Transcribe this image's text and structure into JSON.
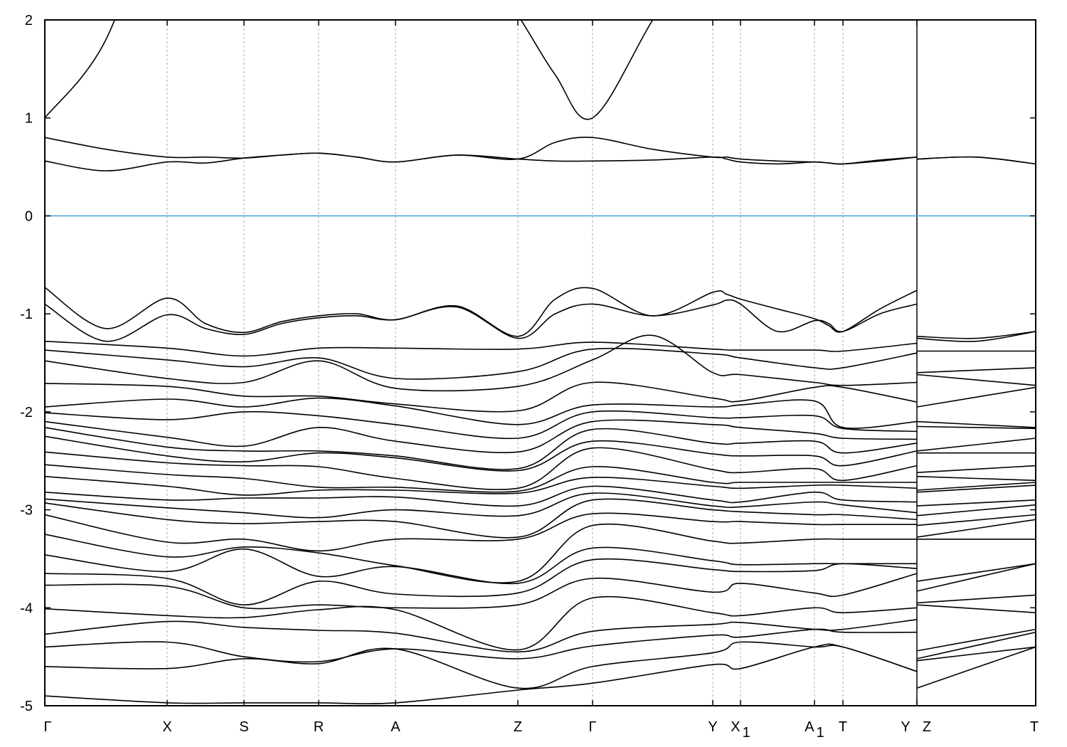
{
  "chart_data": {
    "type": "line",
    "title": "",
    "xlabel": "",
    "ylabel": "",
    "ylim": [
      -5,
      2
    ],
    "yticks": [
      "-5",
      "-4",
      "-3",
      "-2",
      "-1",
      "0",
      "1",
      "2"
    ],
    "grid": "vertical dashed lines at high-symmetry points",
    "fermi_level": {
      "value": 0,
      "color": "#4aa8dc"
    },
    "band_color": "#000000",
    "kpoints": [
      {
        "label": "Γ",
        "sub": "",
        "k": 0
      },
      {
        "label": "X",
        "sub": "",
        "k": 0.86
      },
      {
        "label": "S",
        "sub": "",
        "k": 1.4
      },
      {
        "label": "R",
        "sub": "",
        "k": 1.925
      },
      {
        "label": "A",
        "sub": "",
        "k": 2.465
      },
      {
        "label": "Z",
        "sub": "",
        "k": 3.325
      },
      {
        "label": "Γ",
        "sub": "",
        "k": 3.85
      },
      {
        "label": "Y",
        "sub": "",
        "k": 4.695
      },
      {
        "label": "X",
        "sub": "1",
        "k": 4.89
      },
      {
        "label": "A",
        "sub": "1",
        "k": 5.41
      },
      {
        "label": "T",
        "sub": "",
        "k": 5.61
      },
      {
        "label": "Y",
        "sub": "",
        "k": 6.13
      },
      {
        "label": "Z",
        "sub": "",
        "k": 6.13
      },
      {
        "label": "T",
        "sub": "",
        "k": 6.965
      }
    ],
    "path_break_after": 11,
    "bands": [
      {
        "v": [
          1.0,
          3.5,
          4,
          4,
          4,
          2.05,
          1.0,
          3.0,
          3.5,
          4,
          4,
          4,
          4,
          4
        ],
        "m": [
          1.8,
          4,
          4,
          4,
          3,
          1.44,
          2.0,
          3.2,
          4,
          4,
          4,
          null,
          4
        ]
      },
      {
        "v": [
          0.8,
          0.6,
          0.59,
          0.64,
          0.55,
          0.58,
          0.8,
          0.6,
          0.58,
          0.55,
          0.53,
          0.6,
          0.58,
          0.53
        ],
        "m": [
          0.68,
          0.6,
          0.62,
          0.6,
          0.62,
          0.75,
          0.68,
          0.6,
          0.56,
          0.54,
          0.57,
          null,
          0.6
        ]
      },
      {
        "v": [
          0.56,
          0.55,
          0.59,
          0.64,
          0.55,
          0.58,
          0.56,
          0.6,
          0.55,
          0.55,
          0.53,
          0.6,
          0.58,
          0.53
        ],
        "m": [
          0.46,
          0.54,
          0.62,
          0.6,
          0.62,
          0.56,
          0.57,
          0.58,
          0.53,
          0.54,
          0.56,
          null,
          0.6
        ]
      },
      {
        "v": [
          -0.73,
          -0.84,
          -1.19,
          -1.02,
          -1.06,
          -1.23,
          -0.74,
          -0.78,
          -0.85,
          -1.05,
          -1.18,
          -0.76,
          -1.23,
          -1.18
        ],
        "m": [
          -1.15,
          -1.1,
          -1.08,
          -1.0,
          -0.92,
          -0.85,
          -1.02,
          -0.8,
          -0.95,
          -1.12,
          -0.95,
          null,
          -1.25
        ]
      },
      {
        "v": [
          -0.9,
          -1.01,
          -1.21,
          -1.04,
          -1.06,
          -1.25,
          -0.9,
          -0.91,
          -0.9,
          -1.07,
          -1.18,
          -0.9,
          -1.25,
          -1.18
        ],
        "m": [
          -1.28,
          -1.15,
          -1.1,
          -1.02,
          -0.93,
          -1.0,
          -1.02,
          -0.86,
          -1.18,
          -1.1,
          -1.0,
          null,
          -1.28
        ]
      },
      {
        "v": [
          -1.28,
          -1.35,
          -1.43,
          -1.35,
          -1.35,
          -1.36,
          -1.29,
          -1.36,
          -1.37,
          -1.37,
          -1.38,
          -1.3,
          -1.38,
          -1.38
        ]
      },
      {
        "v": [
          -1.37,
          -1.47,
          -1.54,
          -1.45,
          -1.66,
          -1.59,
          -1.36,
          -1.41,
          -1.45,
          -1.55,
          -1.55,
          -1.4,
          -1.6,
          -1.55
        ]
      },
      {
        "v": [
          -1.48,
          -1.66,
          -1.7,
          -1.48,
          -1.76,
          -1.74,
          -1.47,
          -1.6,
          -1.62,
          -1.7,
          -1.73,
          -1.7,
          -1.62,
          -1.73
        ],
        "m": [
          null,
          null,
          null,
          null,
          null,
          null,
          -1.22,
          null,
          null,
          null,
          null,
          null,
          null
        ]
      },
      {
        "v": [
          -1.71,
          -1.74,
          -1.84,
          -1.84,
          -1.92,
          -1.99,
          -1.7,
          -1.86,
          -1.89,
          -1.75,
          -1.75,
          -1.9,
          -1.95,
          -1.75
        ]
      },
      {
        "v": [
          -1.95,
          -1.87,
          -1.95,
          -1.86,
          -1.94,
          -2.13,
          -1.93,
          -1.95,
          -1.93,
          -1.89,
          -2.16,
          -2.1,
          -2.1,
          -2.16
        ]
      },
      {
        "v": [
          -2.01,
          -2.08,
          -2.0,
          -2.04,
          -2.13,
          -2.27,
          -2.0,
          -2.06,
          -2.06,
          -2.04,
          -2.17,
          -2.2,
          -2.15,
          -2.17
        ]
      },
      {
        "v": [
          -2.1,
          -2.26,
          -2.35,
          -2.16,
          -2.3,
          -2.41,
          -2.1,
          -2.13,
          -2.16,
          -2.22,
          -2.27,
          -2.28,
          -2.4,
          -2.27
        ]
      },
      {
        "v": [
          -2.16,
          -2.36,
          -2.4,
          -2.4,
          -2.45,
          -2.58,
          -2.18,
          -2.32,
          -2.32,
          -2.3,
          -2.42,
          -2.32,
          -2.42,
          -2.42
        ]
      },
      {
        "v": [
          -2.25,
          -2.45,
          -2.51,
          -2.42,
          -2.47,
          -2.6,
          -2.3,
          -2.43,
          -2.45,
          -2.45,
          -2.55,
          -2.4,
          -2.62,
          -2.55
        ]
      },
      {
        "v": [
          -2.41,
          -2.52,
          -2.55,
          -2.56,
          -2.68,
          -2.78,
          -2.37,
          -2.59,
          -2.62,
          -2.58,
          -2.7,
          -2.55,
          -2.66,
          -2.7
        ]
      },
      {
        "v": [
          -2.54,
          -2.64,
          -2.68,
          -2.77,
          -2.77,
          -2.81,
          -2.56,
          -2.72,
          -2.72,
          -2.72,
          -2.72,
          -2.72,
          -2.8,
          -2.72
        ]
      },
      {
        "v": [
          -2.66,
          -2.76,
          -2.85,
          -2.8,
          -2.8,
          -2.83,
          -2.67,
          -2.76,
          -2.78,
          -2.75,
          -2.75,
          -2.78,
          -2.82,
          -2.75
        ]
      },
      {
        "v": [
          -2.82,
          -2.9,
          -2.88,
          -2.88,
          -2.87,
          -2.96,
          -2.76,
          -2.9,
          -2.92,
          -2.82,
          -2.9,
          -2.92,
          -2.96,
          -2.9
        ]
      },
      {
        "v": [
          -2.89,
          -2.98,
          -3.03,
          -3.08,
          -3.0,
          -3.06,
          -2.83,
          -2.96,
          -2.97,
          -2.92,
          -2.95,
          -3.03,
          -3.06,
          -2.95
        ]
      },
      {
        "v": [
          -2.93,
          -3.1,
          -3.14,
          -3.12,
          -3.12,
          -3.28,
          -2.9,
          -3.0,
          -3.02,
          -3.05,
          -3.05,
          -3.1,
          -3.16,
          -3.05
        ]
      },
      {
        "v": [
          -3.05,
          -3.33,
          -3.3,
          -3.42,
          -3.3,
          -3.3,
          -3.04,
          -3.12,
          -3.12,
          -3.15,
          -3.15,
          -3.15,
          -3.28,
          -3.1
        ]
      },
      {
        "v": [
          -3.25,
          -3.48,
          -3.38,
          -3.44,
          -3.57,
          -3.73,
          -3.16,
          -3.32,
          -3.34,
          -3.3,
          -3.3,
          -3.3,
          -3.3,
          -3.3
        ]
      },
      {
        "v": [
          -3.46,
          -3.63,
          -3.4,
          -3.68,
          -3.58,
          -3.75,
          -3.39,
          -3.52,
          -3.56,
          -3.55,
          -3.55,
          -3.55,
          -3.73,
          -3.55
        ]
      },
      {
        "v": [
          -3.65,
          -3.7,
          -3.97,
          -3.73,
          -3.86,
          -3.85,
          -3.51,
          -3.61,
          -3.63,
          -3.62,
          -3.55,
          -3.6,
          -3.83,
          -3.55
        ]
      },
      {
        "v": [
          -3.77,
          -3.78,
          -4.0,
          -3.97,
          -4.0,
          -3.97,
          -3.7,
          -3.84,
          -3.75,
          -3.85,
          -3.87,
          -3.65,
          -3.95,
          -3.87
        ]
      },
      {
        "v": [
          -4.01,
          -4.08,
          -4.1,
          -4.02,
          -4.02,
          -4.43,
          -3.9,
          -4.05,
          -4.08,
          -4.0,
          -4.05,
          -4.0,
          -3.97,
          -4.05
        ]
      },
      {
        "v": [
          -4.27,
          -4.14,
          -4.2,
          -4.23,
          -4.26,
          -4.45,
          -4.24,
          -4.17,
          -4.15,
          -4.22,
          -4.22,
          -4.12,
          -4.44,
          -4.22
        ]
      },
      {
        "v": [
          -4.4,
          -4.35,
          -4.5,
          -4.55,
          -4.42,
          -4.52,
          -4.39,
          -4.28,
          -4.3,
          -4.22,
          -4.25,
          -4.25,
          -4.52,
          -4.25
        ]
      },
      {
        "v": [
          -4.6,
          -4.62,
          -4.52,
          -4.57,
          -4.42,
          -4.82,
          -4.6,
          -4.46,
          -4.35,
          -4.4,
          -4.4,
          -4.65,
          -4.54,
          -4.4
        ]
      },
      {
        "v": [
          -4.9,
          -4.97,
          -4.97,
          -4.97,
          -4.97,
          -4.84,
          -4.77,
          -4.58,
          -4.62,
          -4.4,
          -4.4,
          -4.65,
          -4.82,
          -4.4
        ]
      }
    ]
  }
}
